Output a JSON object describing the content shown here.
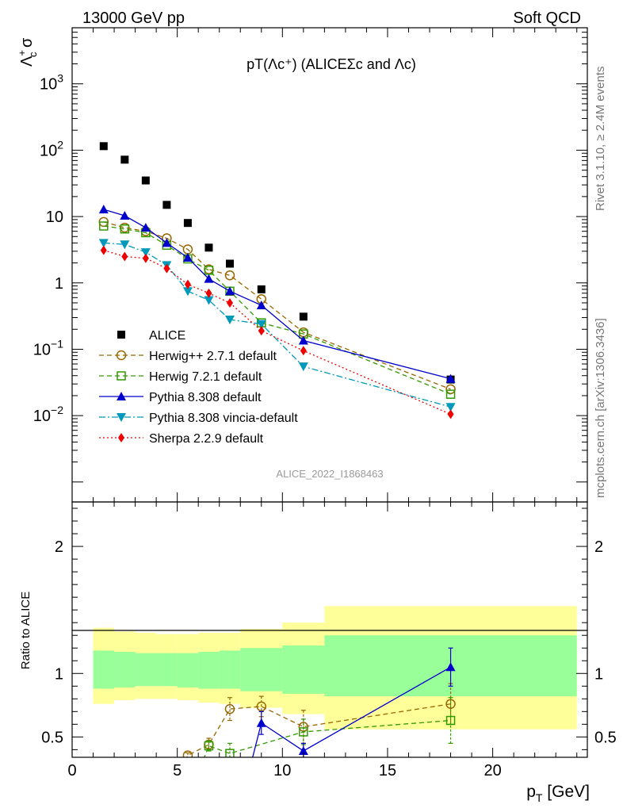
{
  "header": {
    "left": "13000 GeV pp",
    "right": "Soft QCD"
  },
  "side_labels": {
    "rivet": "Rivet 3.1.10, ≥ 2.4M events",
    "mcplots": "mcplots.cern.ch [arXiv:1306.3436]"
  },
  "chart_data": [
    {
      "type": "scatter",
      "title": "pT(Λc⁺) (ALICEΣc and Λc)",
      "ylabel_main": "Λ",
      "ylabel_sup": "+",
      "ylabel_sub": "c",
      "ylabel_tail": " σ",
      "yscale": "log",
      "ylim": [
        0.0005,
        7000
      ],
      "xlim": [
        0,
        24.5
      ],
      "ytick_labels": [
        "10⁻²",
        "10⁻¹",
        "1",
        "10",
        "10²",
        "10³"
      ],
      "watermark": "ALICE_2022_I1868463",
      "legend_position": "lower-left",
      "series": [
        {
          "name": "ALICE",
          "color": "#000000",
          "marker": "square",
          "x": [
            1.5,
            2.5,
            3.5,
            4.5,
            5.5,
            6.5,
            7.5,
            9,
            11,
            18
          ],
          "y": [
            115,
            72,
            35,
            15,
            8,
            3.4,
            1.95,
            0.8,
            0.31,
            0.035
          ]
        },
        {
          "name": "Herwig++ 2.7.1 default",
          "color": "#996600",
          "marker": "open-circle",
          "dash": "6,4",
          "x": [
            1.5,
            2.5,
            3.5,
            4.5,
            5.5,
            6.5,
            7.5,
            9,
            11,
            18
          ],
          "y": [
            8.3,
            6.8,
            6.0,
            4.7,
            3.2,
            1.6,
            1.3,
            0.57,
            0.18,
            0.025
          ]
        },
        {
          "name": "Herwig 7.2.1 default",
          "color": "#339900",
          "marker": "open-square",
          "dash": "6,4",
          "x": [
            1.5,
            2.5,
            3.5,
            4.5,
            5.5,
            6.5,
            7.5,
            9,
            11,
            18
          ],
          "y": [
            7.2,
            6.5,
            5.7,
            3.7,
            2.3,
            1.55,
            0.75,
            0.25,
            0.17,
            0.021
          ]
        },
        {
          "name": "Pythia 8.308 default",
          "color": "#0000cc",
          "marker": "triangle-up",
          "dash": "",
          "x": [
            1.5,
            2.5,
            3.5,
            4.5,
            5.5,
            6.5,
            7.5,
            9,
            11,
            18
          ],
          "y": [
            12.8,
            10.3,
            6.8,
            4.0,
            2.4,
            1.15,
            0.75,
            0.46,
            0.135,
            0.036
          ]
        },
        {
          "name": "Pythia 8.308 vincia-default",
          "color": "#0099bb",
          "marker": "triangle-down",
          "dash": "8,3,2,3",
          "x": [
            1.5,
            2.5,
            3.5,
            4.5,
            5.5,
            6.5,
            7.5,
            9,
            11,
            18
          ],
          "y": [
            4.0,
            3.8,
            2.9,
            1.85,
            0.75,
            0.55,
            0.28,
            0.24,
            0.055,
            0.0135
          ]
        },
        {
          "name": "Sherpa 2.2.9 default",
          "color": "#ee0000",
          "marker": "diamond",
          "dash": "2,3",
          "x": [
            1.5,
            2.5,
            3.5,
            4.5,
            5.5,
            6.5,
            7.5,
            9,
            11,
            18
          ],
          "y": [
            3.1,
            2.5,
            2.35,
            1.65,
            0.95,
            0.7,
            0.5,
            0.19,
            0.095,
            0.0105
          ]
        }
      ]
    },
    {
      "type": "line",
      "ylabel": "Ratio to ALICE",
      "xlabel": "p",
      "xlabel_sub": "T",
      "xlabel_tail": " [GeV]",
      "xlim": [
        0,
        24.5
      ],
      "ylim": [
        0.34,
        2.35
      ],
      "xticks": [
        0,
        5,
        10,
        15,
        20
      ],
      "xtick_labels": [
        "0",
        "5",
        "10",
        "15",
        "20"
      ],
      "yticks": [
        0.5,
        1,
        2
      ],
      "ytick_labels": [
        "0.5",
        "1",
        "2"
      ],
      "bands": {
        "yellow": "#ffff99",
        "green": "#99ff99",
        "bins": [
          {
            "x": [
              1.0,
              2.0
            ],
            "yl": [
              0.76,
              1.36
            ],
            "gr": [
              0.88,
              1.18
            ]
          },
          {
            "x": [
              2.0,
              3.0
            ],
            "yl": [
              0.79,
              1.33
            ],
            "gr": [
              0.89,
              1.17
            ]
          },
          {
            "x": [
              3.0,
              4.0
            ],
            "yl": [
              0.8,
              1.32
            ],
            "gr": [
              0.9,
              1.16
            ]
          },
          {
            "x": [
              4.0,
              5.0
            ],
            "yl": [
              0.8,
              1.31
            ],
            "gr": [
              0.9,
              1.16
            ]
          },
          {
            "x": [
              5.0,
              6.0
            ],
            "yl": [
              0.79,
              1.31
            ],
            "gr": [
              0.89,
              1.16
            ]
          },
          {
            "x": [
              6.0,
              7.0
            ],
            "yl": [
              0.77,
              1.32
            ],
            "gr": [
              0.88,
              1.17
            ]
          },
          {
            "x": [
              7.0,
              8.0
            ],
            "yl": [
              0.76,
              1.32
            ],
            "gr": [
              0.88,
              1.18
            ]
          },
          {
            "x": [
              8.0,
              10.0
            ],
            "yl": [
              0.73,
              1.35
            ],
            "gr": [
              0.86,
              1.2
            ]
          },
          {
            "x": [
              10.0,
              12.0
            ],
            "yl": [
              0.68,
              1.4
            ],
            "gr": [
              0.84,
              1.22
            ]
          },
          {
            "x": [
              12.0,
              24.0
            ],
            "yl": [
              0.56,
              1.53
            ],
            "gr": [
              0.82,
              1.3
            ]
          }
        ]
      },
      "series": [
        {
          "name": "Herwig++ 2.7.1 default",
          "color": "#996600",
          "marker": "open-circle",
          "dash": "6,4",
          "x": [
            5.5,
            6.5,
            7.5,
            9,
            11,
            18
          ],
          "y": [
            0.355,
            0.44,
            0.72,
            0.74,
            0.58,
            0.76
          ],
          "err": [
            0.02,
            0.05,
            0.09,
            0.08,
            0.13,
            0.16
          ]
        },
        {
          "name": "Herwig 7.2.1 default",
          "color": "#339900",
          "marker": "open-square",
          "dash": "6,4",
          "x": [
            6.5,
            7.5,
            11,
            18
          ],
          "y": [
            0.43,
            0.37,
            0.54,
            0.63
          ],
          "err": [
            0.04,
            0.08,
            0.1,
            0.18
          ]
        },
        {
          "name": "Pythia 8.308 default",
          "color": "#0000cc",
          "marker": "triangle-up",
          "dash": "",
          "x": [
            9,
            11,
            18
          ],
          "y": [
            0.61,
            0.39,
            1.05
          ],
          "err": [
            0.09,
            0.06,
            0.15
          ]
        }
      ]
    }
  ]
}
